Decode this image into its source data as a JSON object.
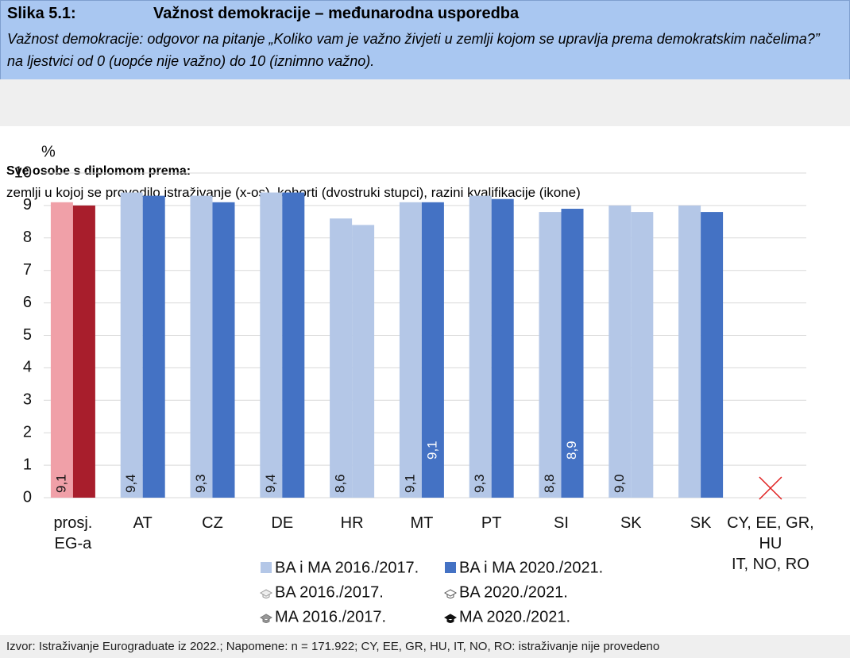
{
  "header": {
    "label": "Slika 5.1:",
    "title": "Važnost demokracije – međunarodna usporedba",
    "subtitle": "Važnost demokracije: odgovor na pitanje „Koliko vam je važno živjeti u zemlji kojom se upravlja prema demokratskim načelima?” na ljestvici od 0 (uopće nije važno) do 10 (iznimno važno).",
    "section": "Sve osobe s diplomom prema:",
    "description": "zemlji u kojoj se provodilo istraživanje (x-os), kohorti (dvostruki stupci), razini kvalifikacije (ikone)"
  },
  "chart_data": {
    "type": "bar",
    "ylabel": "%",
    "categories": [
      "prosj.\nEG-a",
      "AT",
      "CZ",
      "DE",
      "HR",
      "MT",
      "PT",
      "SI",
      "SK",
      "SK",
      "CY, EE, GR,\nHU\nIT, NO, RO"
    ],
    "series": [
      {
        "name": "BA i MA 2016./2017.",
        "color": "#b4c7e7",
        "colors": [
          "#f0a0a8",
          "#b4c7e7",
          "#b4c7e7",
          "#b4c7e7",
          "#b4c7e7",
          "#b4c7e7",
          "#b4c7e7",
          "#b4c7e7",
          "#b4c7e7",
          "#b4c7e7",
          "#b4c7e7"
        ],
        "values": [
          9.1,
          9.4,
          9.3,
          9.4,
          8.6,
          9.1,
          9.3,
          8.8,
          9.0,
          9.0,
          null
        ],
        "value_labels": [
          "9,1",
          "9,4",
          "9,3",
          "9,4",
          "8,6",
          "9,1",
          "9,3",
          "8,8",
          "9,0",
          null,
          null
        ]
      },
      {
        "name": "BA i MA 2020./2021.",
        "color": "#4472c4",
        "colors": [
          "#a81e2c",
          "#4472c4",
          "#4472c4",
          "#4472c4",
          "#b4c7e7",
          "#4472c4",
          "#4472c4",
          "#4472c4",
          "#b4c7e7",
          "#4472c4",
          "#4472c4"
        ],
        "values": [
          9.0,
          9.3,
          9.1,
          9.4,
          8.4,
          9.1,
          9.2,
          8.9,
          8.8,
          8.8,
          null
        ],
        "value_labels": [
          null,
          null,
          null,
          null,
          null,
          "9,1",
          null,
          "8,9",
          null,
          null,
          null
        ]
      }
    ],
    "icon_legend": [
      "BA 2016./2017.",
      "BA 2020./2021.",
      "MA 2016./2017.",
      "MA 2020./2021."
    ],
    "ylim": [
      0,
      10
    ],
    "yticks": [
      0,
      1,
      2,
      3,
      4,
      5,
      6,
      7,
      8,
      9,
      10
    ],
    "grid": true
  },
  "footer": "Izvor: Istraživanje Eurograduate iz 2022.; Napomene: n = 171.922; CY, EE, GR, HU, IT, NO, RO: istraživanje nije provedeno"
}
